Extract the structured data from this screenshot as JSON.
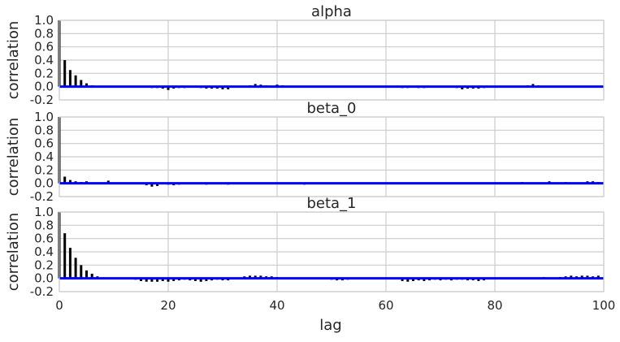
{
  "chart_data": {
    "type": "bar",
    "xlabel": "lag",
    "xlim": [
      0,
      100
    ],
    "xticks": [
      0,
      20,
      40,
      60,
      80,
      100
    ],
    "grid": true,
    "colors": {
      "bars": "#000000",
      "zero_line": "#0000ff",
      "grid": "#cccccc"
    },
    "panels": [
      {
        "title": "alpha",
        "ylabel": "correlation",
        "ylim": [
          -0.2,
          1.0
        ],
        "yticks": [
          -0.2,
          0.0,
          0.2,
          0.4,
          0.6,
          0.8,
          1.0
        ],
        "lags": [
          0,
          1,
          2,
          3,
          4,
          5,
          6,
          7,
          8,
          9,
          10,
          11,
          12,
          13,
          14,
          15,
          16,
          17,
          18,
          19,
          20,
          21,
          22,
          23,
          24,
          25,
          26,
          27,
          28,
          29,
          30,
          31,
          32,
          33,
          34,
          35,
          36,
          37,
          38,
          39,
          40,
          41,
          42,
          43,
          44,
          45,
          46,
          47,
          48,
          49,
          50,
          51,
          52,
          53,
          54,
          55,
          56,
          57,
          58,
          59,
          60,
          61,
          62,
          63,
          64,
          65,
          66,
          67,
          68,
          69,
          70,
          71,
          72,
          73,
          74,
          75,
          76,
          77,
          78,
          79,
          80,
          81,
          82,
          83,
          84,
          85,
          86,
          87,
          88,
          89,
          90,
          91,
          92,
          93,
          94,
          95,
          96,
          97,
          98,
          99,
          100
        ],
        "values": [
          1.0,
          0.4,
          0.25,
          0.17,
          0.1,
          0.05,
          0.02,
          0.01,
          0.0,
          0.0,
          0.0,
          0.0,
          0.0,
          0.0,
          0.0,
          -0.01,
          -0.01,
          -0.02,
          -0.02,
          -0.03,
          -0.05,
          -0.03,
          -0.02,
          -0.02,
          -0.01,
          -0.01,
          -0.02,
          -0.03,
          -0.03,
          -0.03,
          -0.04,
          -0.04,
          0.0,
          0.01,
          0.01,
          0.02,
          0.04,
          0.03,
          0.02,
          0.0,
          0.03,
          0.02,
          0.0,
          0.0,
          0.0,
          0.0,
          0.0,
          0.0,
          0.0,
          0.0,
          0.0,
          0.0,
          0.0,
          0.0,
          0.0,
          0.0,
          0.0,
          0.0,
          0.0,
          0.0,
          0.0,
          -0.01,
          -0.01,
          -0.02,
          -0.02,
          -0.01,
          -0.02,
          -0.02,
          -0.01,
          0.0,
          -0.01,
          -0.01,
          -0.01,
          -0.02,
          -0.04,
          -0.03,
          -0.03,
          -0.03,
          -0.02,
          0.0,
          0.0,
          0.0,
          0.0,
          0.01,
          0.01,
          0.01,
          0.02,
          0.04,
          0.02,
          0.01,
          0.01,
          0.0,
          0.0,
          0.0,
          0.0,
          0.0,
          0.0,
          0.0,
          0.0,
          0.0,
          0.0
        ]
      },
      {
        "title": "beta_0",
        "ylabel": "correlation",
        "ylim": [
          -0.2,
          1.0
        ],
        "yticks": [
          -0.2,
          0.0,
          0.2,
          0.4,
          0.6,
          0.8,
          1.0
        ],
        "lags": [
          0,
          1,
          2,
          3,
          4,
          5,
          6,
          7,
          8,
          9,
          10,
          11,
          12,
          13,
          14,
          15,
          16,
          17,
          18,
          19,
          20,
          21,
          22,
          23,
          24,
          25,
          26,
          27,
          28,
          29,
          30,
          31,
          32,
          33,
          34,
          35,
          36,
          37,
          38,
          39,
          40,
          41,
          42,
          43,
          44,
          45,
          46,
          47,
          48,
          49,
          50,
          51,
          52,
          53,
          54,
          55,
          56,
          57,
          58,
          59,
          60,
          61,
          62,
          63,
          64,
          65,
          66,
          67,
          68,
          69,
          70,
          71,
          72,
          73,
          74,
          75,
          76,
          77,
          78,
          79,
          80,
          81,
          82,
          83,
          84,
          85,
          86,
          87,
          88,
          89,
          90,
          91,
          92,
          93,
          94,
          95,
          96,
          97,
          98,
          99,
          100
        ],
        "values": [
          1.0,
          0.1,
          0.05,
          0.03,
          0.02,
          0.03,
          0.01,
          0.0,
          0.0,
          0.04,
          0.0,
          0.0,
          0.01,
          0.0,
          0.0,
          0.0,
          -0.03,
          -0.05,
          -0.04,
          0.0,
          -0.02,
          -0.03,
          -0.02,
          0.0,
          0.0,
          0.0,
          0.01,
          -0.02,
          0.0,
          0.0,
          -0.01,
          -0.02,
          0.0,
          0.0,
          0.0,
          0.0,
          0.0,
          0.0,
          0.0,
          0.0,
          0.0,
          0.0,
          0.0,
          0.0,
          0.0,
          -0.02,
          0.0,
          0.0,
          0.0,
          0.0,
          0.0,
          0.0,
          0.0,
          0.0,
          0.0,
          0.0,
          0.0,
          0.0,
          0.0,
          0.0,
          0.0,
          0.0,
          0.0,
          0.0,
          0.0,
          0.0,
          0.0,
          0.0,
          0.0,
          0.0,
          0.0,
          0.0,
          0.0,
          0.0,
          0.0,
          0.0,
          0.0,
          0.0,
          0.0,
          0.0,
          0.0,
          0.0,
          0.0,
          0.0,
          0.0,
          0.02,
          0.0,
          0.0,
          0.0,
          0.0,
          0.03,
          0.01,
          0.01,
          0.02,
          0.0,
          0.0,
          0.0,
          0.03,
          0.03,
          0.02,
          0.0
        ]
      },
      {
        "title": "beta_1",
        "ylabel": "correlation",
        "ylim": [
          -0.2,
          1.0
        ],
        "yticks": [
          -0.2,
          0.0,
          0.2,
          0.4,
          0.6,
          0.8,
          1.0
        ],
        "lags": [
          0,
          1,
          2,
          3,
          4,
          5,
          6,
          7,
          8,
          9,
          10,
          11,
          12,
          13,
          14,
          15,
          16,
          17,
          18,
          19,
          20,
          21,
          22,
          23,
          24,
          25,
          26,
          27,
          28,
          29,
          30,
          31,
          32,
          33,
          34,
          35,
          36,
          37,
          38,
          39,
          40,
          41,
          42,
          43,
          44,
          45,
          46,
          47,
          48,
          49,
          50,
          51,
          52,
          53,
          54,
          55,
          56,
          57,
          58,
          59,
          60,
          61,
          62,
          63,
          64,
          65,
          66,
          67,
          68,
          69,
          70,
          71,
          72,
          73,
          74,
          75,
          76,
          77,
          78,
          79,
          80,
          81,
          82,
          83,
          84,
          85,
          86,
          87,
          88,
          89,
          90,
          91,
          92,
          93,
          94,
          95,
          96,
          97,
          98,
          99,
          100
        ],
        "values": [
          1.0,
          0.68,
          0.46,
          0.31,
          0.2,
          0.12,
          0.07,
          0.03,
          0.01,
          0.0,
          0.0,
          0.0,
          0.0,
          -0.01,
          -0.02,
          -0.04,
          -0.05,
          -0.05,
          -0.05,
          -0.04,
          -0.05,
          -0.04,
          -0.03,
          -0.02,
          -0.03,
          -0.04,
          -0.05,
          -0.04,
          -0.03,
          -0.02,
          -0.03,
          -0.03,
          0.0,
          0.01,
          0.03,
          0.04,
          0.04,
          0.04,
          0.03,
          0.03,
          0.02,
          0.01,
          0.0,
          0.0,
          0.0,
          0.0,
          0.0,
          0.0,
          0.0,
          0.0,
          -0.02,
          -0.03,
          -0.03,
          -0.02,
          -0.01,
          0.0,
          0.0,
          0.0,
          0.0,
          0.0,
          0.0,
          0.0,
          -0.01,
          -0.04,
          -0.05,
          -0.04,
          -0.03,
          -0.04,
          -0.03,
          -0.02,
          -0.03,
          -0.02,
          -0.03,
          -0.02,
          -0.02,
          -0.03,
          -0.03,
          -0.04,
          -0.03,
          0.0,
          0.0,
          0.0,
          0.0,
          0.0,
          0.0,
          0.0,
          0.0,
          0.0,
          0.0,
          0.02,
          0.01,
          0.01,
          0.02,
          0.03,
          0.04,
          0.03,
          0.04,
          0.04,
          0.03,
          0.04,
          0.0
        ]
      }
    ]
  }
}
